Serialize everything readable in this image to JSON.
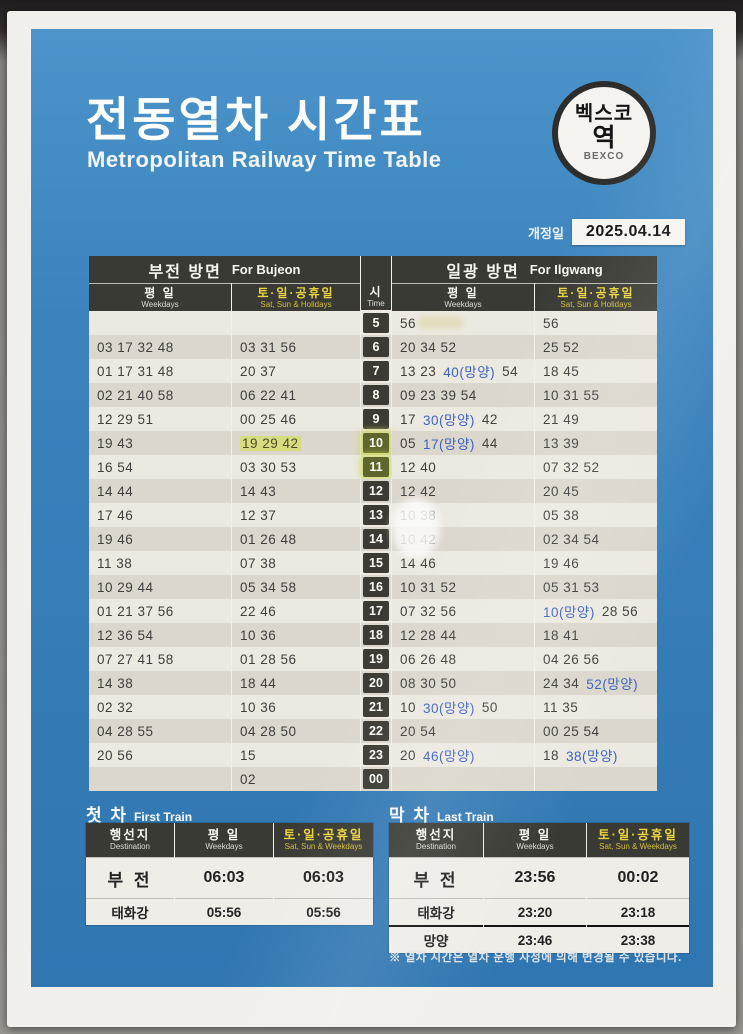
{
  "poster": {
    "title_ko": "전동열차 시간표",
    "title_en": "Metropolitan Railway Time Table",
    "station_badge": {
      "line1": "벡스코",
      "line2": "역",
      "line3": "BEXCO"
    },
    "revision": {
      "label": "개정일",
      "date": "2025.04.14"
    }
  },
  "colors": {
    "poster_blue": "#3a83bd",
    "header_dark": "#3a3a34",
    "holiday_yellow": "#ecd43e",
    "mangyang_blue": "#3c63c0",
    "highlight_yellow_green": "#d5de6e"
  },
  "timetable": {
    "left": {
      "ko": "부전 방면",
      "en": "For Bujeon"
    },
    "right": {
      "ko": "일광 방면",
      "en": "For Ilgwang"
    },
    "time": {
      "ko": "시",
      "en": "Time"
    },
    "weekday": {
      "ko": "평 일",
      "en": "Weekdays"
    },
    "weekend": {
      "ko": "토·일·공휴일",
      "en": "Sat, Sun & Holidays"
    },
    "rows": [
      {
        "hour": "5",
        "bw": [],
        "be": [],
        "iw": [
          {
            "t": "56"
          }
        ],
        "ie": [
          {
            "t": "56"
          }
        ]
      },
      {
        "hour": "6",
        "bw": [
          {
            "t": "03 17 32 48"
          }
        ],
        "be": [
          {
            "t": "03 31 56"
          }
        ],
        "iw": [
          {
            "t": "20 34 52"
          }
        ],
        "ie": [
          {
            "t": "25 52"
          }
        ]
      },
      {
        "hour": "7",
        "bw": [
          {
            "t": "01 17 31 48"
          }
        ],
        "be": [
          {
            "t": "20 37"
          }
        ],
        "iw": [
          {
            "t": "13 23"
          },
          {
            "t": "40(망양)",
            "m": true
          },
          {
            "t": "54"
          }
        ],
        "ie": [
          {
            "t": "18 45"
          }
        ]
      },
      {
        "hour": "8",
        "bw": [
          {
            "t": "02 21 40 58"
          }
        ],
        "be": [
          {
            "t": "06 22 41"
          }
        ],
        "iw": [
          {
            "t": "09 23 39 54"
          }
        ],
        "ie": [
          {
            "t": "10 31 55"
          }
        ]
      },
      {
        "hour": "9",
        "bw": [
          {
            "t": "12 29 51"
          }
        ],
        "be": [
          {
            "t": "00 25 46"
          }
        ],
        "iw": [
          {
            "t": "17"
          },
          {
            "t": "30(망양)",
            "m": true
          },
          {
            "t": "42"
          }
        ],
        "ie": [
          {
            "t": "21 49"
          }
        ]
      },
      {
        "hour": "10",
        "hl": true,
        "bw": [
          {
            "t": "19 43"
          }
        ],
        "be": [
          {
            "t": "19 29 42",
            "hl": true
          }
        ],
        "iw": [
          {
            "t": "05"
          },
          {
            "t": "17(망양)",
            "m": true
          },
          {
            "t": "44"
          }
        ],
        "ie": [
          {
            "t": "13 39"
          }
        ]
      },
      {
        "hour": "11",
        "hl": true,
        "bw": [
          {
            "t": "16 54"
          }
        ],
        "be": [
          {
            "t": "03 30 53"
          }
        ],
        "iw": [
          {
            "t": "12 40"
          }
        ],
        "ie": [
          {
            "t": "07 32 52"
          }
        ]
      },
      {
        "hour": "12",
        "bw": [
          {
            "t": "14 44"
          }
        ],
        "be": [
          {
            "t": "14 43"
          }
        ],
        "iw": [
          {
            "t": "12 42"
          }
        ],
        "ie": [
          {
            "t": "20 45"
          }
        ]
      },
      {
        "hour": "13",
        "bw": [
          {
            "t": "17 46"
          }
        ],
        "be": [
          {
            "t": "12 37"
          }
        ],
        "iw": [
          {
            "t": "10 38"
          }
        ],
        "ie": [
          {
            "t": "05 38"
          }
        ]
      },
      {
        "hour": "14",
        "bw": [
          {
            "t": "19 46"
          }
        ],
        "be": [
          {
            "t": "01 26 48"
          }
        ],
        "iw": [
          {
            "t": "10 42"
          }
        ],
        "ie": [
          {
            "t": "02 34 54"
          }
        ]
      },
      {
        "hour": "15",
        "bw": [
          {
            "t": "11 38"
          }
        ],
        "be": [
          {
            "t": "07 38"
          }
        ],
        "iw": [
          {
            "t": "14 46"
          }
        ],
        "ie": [
          {
            "t": "19 46"
          }
        ]
      },
      {
        "hour": "16",
        "bw": [
          {
            "t": "10 29 44"
          }
        ],
        "be": [
          {
            "t": "05 34 58"
          }
        ],
        "iw": [
          {
            "t": "10 31 52"
          }
        ],
        "ie": [
          {
            "t": "05 31 53"
          }
        ]
      },
      {
        "hour": "17",
        "bw": [
          {
            "t": "01 21 37 56"
          }
        ],
        "be": [
          {
            "t": "22 46"
          }
        ],
        "iw": [
          {
            "t": "07 32 56"
          }
        ],
        "ie": [
          {
            "t": "10(망양)",
            "m": true
          },
          {
            "t": "28 56"
          }
        ]
      },
      {
        "hour": "18",
        "bw": [
          {
            "t": "12 36 54"
          }
        ],
        "be": [
          {
            "t": "10 36"
          }
        ],
        "iw": [
          {
            "t": "12 28 44"
          }
        ],
        "ie": [
          {
            "t": "18 41"
          }
        ]
      },
      {
        "hour": "19",
        "bw": [
          {
            "t": "07 27 41 58"
          }
        ],
        "be": [
          {
            "t": "01 28 56"
          }
        ],
        "iw": [
          {
            "t": "06 26 48"
          }
        ],
        "ie": [
          {
            "t": "04 26 56"
          }
        ]
      },
      {
        "hour": "20",
        "bw": [
          {
            "t": "14 38"
          }
        ],
        "be": [
          {
            "t": "18 44"
          }
        ],
        "iw": [
          {
            "t": "08 30 50"
          }
        ],
        "ie": [
          {
            "t": "24 34"
          },
          {
            "t": "52(망양)",
            "m": true
          }
        ]
      },
      {
        "hour": "21",
        "bw": [
          {
            "t": "02 32"
          }
        ],
        "be": [
          {
            "t": "10 36"
          }
        ],
        "iw": [
          {
            "t": "10"
          },
          {
            "t": "30(망양)",
            "m": true
          },
          {
            "t": "50"
          }
        ],
        "ie": [
          {
            "t": "11 35"
          }
        ]
      },
      {
        "hour": "22",
        "bw": [
          {
            "t": "04 28 55"
          }
        ],
        "be": [
          {
            "t": "04 28 50"
          }
        ],
        "iw": [
          {
            "t": "20 54"
          }
        ],
        "ie": [
          {
            "t": "00 25 54"
          }
        ]
      },
      {
        "hour": "23",
        "bw": [
          {
            "t": "20 56"
          }
        ],
        "be": [
          {
            "t": "15"
          }
        ],
        "iw": [
          {
            "t": "20"
          },
          {
            "t": "46(망양)",
            "m": true
          }
        ],
        "ie": [
          {
            "t": "18"
          },
          {
            "t": "38(망양)",
            "m": true
          }
        ]
      },
      {
        "hour": "00",
        "bw": [],
        "be": [
          {
            "t": "02"
          }
        ],
        "iw": [],
        "ie": []
      }
    ]
  },
  "first_train": {
    "title_ko": "첫 차",
    "title_en": "First Train",
    "dest_header": {
      "ko": "행선지",
      "en": "Destination"
    },
    "weekday_header": {
      "ko": "평 일",
      "en": "Weekdays"
    },
    "weekend_header": {
      "ko": "토·일·공휴일",
      "en": "Sat, Sun & Weekdays"
    },
    "rows": [
      {
        "dest": "부 전",
        "weekday": "06:03",
        "weekend": "06:03",
        "big": true
      },
      {
        "dest": "태화강",
        "weekday": "05:56",
        "weekend": "05:56"
      }
    ]
  },
  "last_train": {
    "title_ko": "막 차",
    "title_en": "Last Train",
    "dest_header": {
      "ko": "행선지",
      "en": "Destination"
    },
    "weekday_header": {
      "ko": "평 일",
      "en": "Weekdays"
    },
    "weekend_header": {
      "ko": "토·일·공휴일",
      "en": "Sat, Sun & Weekdays"
    },
    "rows": [
      {
        "dest": "부 전",
        "weekday": "23:56",
        "weekend": "00:02",
        "big": true
      },
      {
        "dest": "태화강",
        "weekday": "23:20",
        "weekend": "23:18"
      },
      {
        "dest": "망양",
        "weekday": "23:46",
        "weekend": "23:38",
        "thick": true
      }
    ]
  },
  "footnote": "※ 열차 시간은 열차 운행 사정에 의해 변경될 수 있습니다."
}
